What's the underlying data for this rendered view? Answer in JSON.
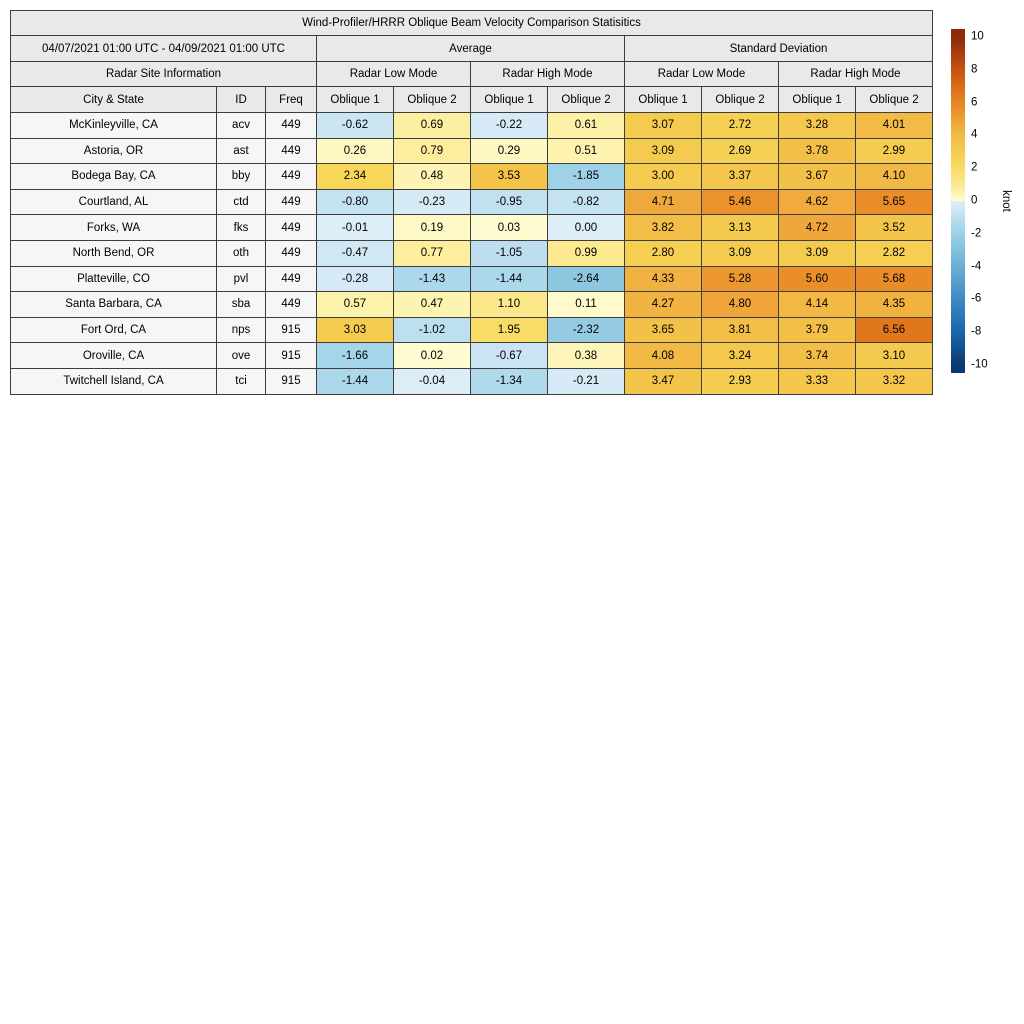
{
  "chart_data": {
    "type": "heatmap",
    "title": "Wind-Profiler/HRRR Oblique Beam Velocity Comparison Statisitics",
    "date_range": "04/07/2021 01:00 UTC - 04/09/2021 01:00 UTC",
    "site_info_header": "Radar Site Information",
    "sections": {
      "average": "Average",
      "std_dev": "Standard Deviation"
    },
    "mode_headers": [
      "Radar Low Mode",
      "Radar High Mode",
      "Radar Low Mode",
      "Radar High Mode"
    ],
    "columns": [
      "City & State",
      "ID",
      "Freq",
      "Oblique 1",
      "Oblique 2",
      "Oblique 1",
      "Oblique 2",
      "Oblique 1",
      "Oblique 2",
      "Oblique 1",
      "Oblique 2"
    ],
    "rows": [
      {
        "city": "McKinleyville, CA",
        "id": "acv",
        "freq": "449",
        "values": [
          -0.62,
          0.69,
          -0.22,
          0.61,
          3.07,
          2.72,
          3.28,
          4.01
        ]
      },
      {
        "city": "Astoria, OR",
        "id": "ast",
        "freq": "449",
        "values": [
          0.26,
          0.79,
          0.29,
          0.51,
          3.09,
          2.69,
          3.78,
          2.99
        ]
      },
      {
        "city": "Bodega Bay, CA",
        "id": "bby",
        "freq": "449",
        "values": [
          2.34,
          0.48,
          3.53,
          -1.85,
          3.0,
          3.37,
          3.67,
          4.1
        ]
      },
      {
        "city": "Courtland, AL",
        "id": "ctd",
        "freq": "449",
        "values": [
          -0.8,
          -0.23,
          -0.95,
          -0.82,
          4.71,
          5.46,
          4.62,
          5.65
        ]
      },
      {
        "city": "Forks, WA",
        "id": "fks",
        "freq": "449",
        "values": [
          -0.01,
          0.19,
          0.03,
          0.0,
          3.82,
          3.13,
          4.72,
          3.52
        ]
      },
      {
        "city": "North Bend, OR",
        "id": "oth",
        "freq": "449",
        "values": [
          -0.47,
          0.77,
          -1.05,
          0.99,
          2.8,
          3.09,
          3.09,
          2.82
        ]
      },
      {
        "city": "Platteville, CO",
        "id": "pvl",
        "freq": "449",
        "values": [
          -0.28,
          -1.43,
          -1.44,
          -2.64,
          4.33,
          5.28,
          5.6,
          5.68
        ]
      },
      {
        "city": "Santa Barbara, CA",
        "id": "sba",
        "freq": "449",
        "values": [
          0.57,
          0.47,
          1.1,
          0.11,
          4.27,
          4.8,
          4.14,
          4.35
        ]
      },
      {
        "city": "Fort Ord, CA",
        "id": "nps",
        "freq": "915",
        "values": [
          3.03,
          -1.02,
          1.95,
          -2.32,
          3.65,
          3.81,
          3.79,
          6.56
        ]
      },
      {
        "city": "Oroville, CA",
        "id": "ove",
        "freq": "915",
        "values": [
          -1.66,
          0.02,
          -0.67,
          0.38,
          4.08,
          3.24,
          3.74,
          3.1
        ]
      },
      {
        "city": "Twitchell Island, CA",
        "id": "tci",
        "freq": "915",
        "values": [
          -1.44,
          -0.04,
          -1.34,
          -0.21,
          3.47,
          2.93,
          3.33,
          3.32
        ]
      }
    ],
    "colorbar": {
      "label": "knot",
      "ticks": [
        10,
        8,
        6,
        4,
        2,
        0,
        -2,
        -4,
        -6,
        -8,
        -10
      ],
      "min": -10,
      "max": 10,
      "bar_extent": [
        -10.5,
        10.5
      ]
    },
    "colormap": {
      "positive_stops": [
        [
          0.0,
          "#fefcd2"
        ],
        [
          0.3,
          "#fdf7c0"
        ],
        [
          0.6,
          "#fdf1a8"
        ],
        [
          1.0,
          "#fce98f"
        ],
        [
          2.0,
          "#f8db64"
        ],
        [
          2.5,
          "#f6d356"
        ],
        [
          3.2,
          "#f4c94d"
        ],
        [
          4.1,
          "#f2b944"
        ],
        [
          4.8,
          "#efa53a"
        ],
        [
          5.6,
          "#ea8e29"
        ],
        [
          6.6,
          "#e1761b"
        ],
        [
          8.0,
          "#c55312"
        ],
        [
          10.0,
          "#8c2b0a"
        ]
      ],
      "negative_stops": [
        [
          -10.0,
          "#0b3a70"
        ],
        [
          -8.0,
          "#1a65ab"
        ],
        [
          -6.0,
          "#3d8ac4"
        ],
        [
          -4.0,
          "#6aaed6"
        ],
        [
          -2.7,
          "#8bc5de"
        ],
        [
          -2.0,
          "#9cd0e6"
        ],
        [
          -1.5,
          "#a9d7ea"
        ],
        [
          -1.0,
          "#bfdff0"
        ],
        [
          -0.5,
          "#cfe7f4"
        ],
        [
          0.0,
          "#ddeef8"
        ]
      ]
    }
  },
  "styles": {
    "header_bg": "#e9e9e9",
    "row_label_bg": "#f6f6f6",
    "grid_border": "#3d3d3d"
  }
}
